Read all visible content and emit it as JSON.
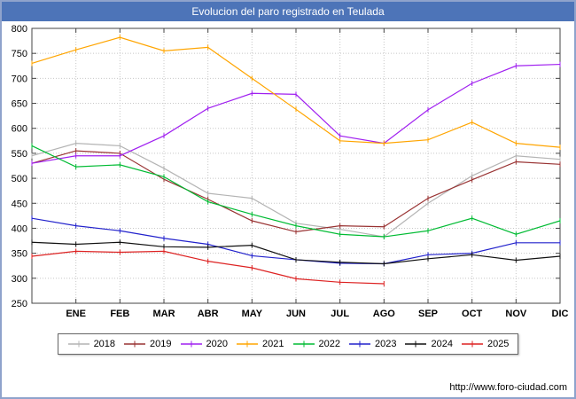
{
  "title": "Evolucion del paro registrado en Teulada",
  "footer": {
    "url": "http://www.foro-ciudad.com"
  },
  "ui": {
    "title_bar_color": "#4d74b8",
    "frame_border_color": "#8fa3cc",
    "grid_color": "#c8c8c8",
    "axis_color": "#444444",
    "text_color": "#000000"
  },
  "chart_data": {
    "type": "line",
    "title": "Evolucion del paro registrado en Teulada",
    "xlabel": "",
    "ylabel": "",
    "ylim": [
      250,
      800
    ],
    "ytick_step": 50,
    "grid": true,
    "legend_position": "bottom",
    "categories": [
      "ENE",
      "FEB",
      "MAR",
      "ABR",
      "MAY",
      "JUN",
      "JUL",
      "AGO",
      "SEP",
      "OCT",
      "NOV",
      "DIC"
    ],
    "series": [
      {
        "name": "2018",
        "color": "#b4b4b4",
        "start": 545,
        "values": [
          570,
          565,
          520,
          470,
          460,
          410,
          398,
          383,
          450,
          505,
          545,
          538
        ]
      },
      {
        "name": "2019",
        "color": "#993333",
        "start": 530,
        "values": [
          555,
          550,
          498,
          458,
          415,
          393,
          405,
          403,
          460,
          497,
          533,
          528
        ]
      },
      {
        "name": "2020",
        "color": "#a020f0",
        "start": 530,
        "values": [
          545,
          545,
          585,
          640,
          670,
          668,
          585,
          570,
          637,
          690,
          725,
          728
        ]
      },
      {
        "name": "2021",
        "color": "#ffa500",
        "start": 730,
        "values": [
          757,
          782,
          755,
          762,
          700,
          638,
          575,
          570,
          577,
          612,
          570,
          562
        ]
      },
      {
        "name": "2022",
        "color": "#00bb33",
        "start": 565,
        "values": [
          523,
          527,
          503,
          453,
          428,
          405,
          388,
          383,
          395,
          420,
          388,
          415
        ]
      },
      {
        "name": "2023",
        "color": "#2222cc",
        "start": 420,
        "values": [
          405,
          395,
          380,
          368,
          345,
          337,
          330,
          329,
          347,
          350,
          371,
          371
        ]
      },
      {
        "name": "2024",
        "color": "#111111",
        "start": 372,
        "values": [
          368,
          372,
          363,
          362,
          366,
          337,
          332,
          329,
          339,
          347,
          336,
          344
        ]
      },
      {
        "name": "2025",
        "color": "#dd2222",
        "start": 344,
        "values": [
          354,
          352,
          354,
          334,
          321,
          299,
          292,
          289,
          null,
          null,
          null,
          null
        ]
      }
    ]
  }
}
